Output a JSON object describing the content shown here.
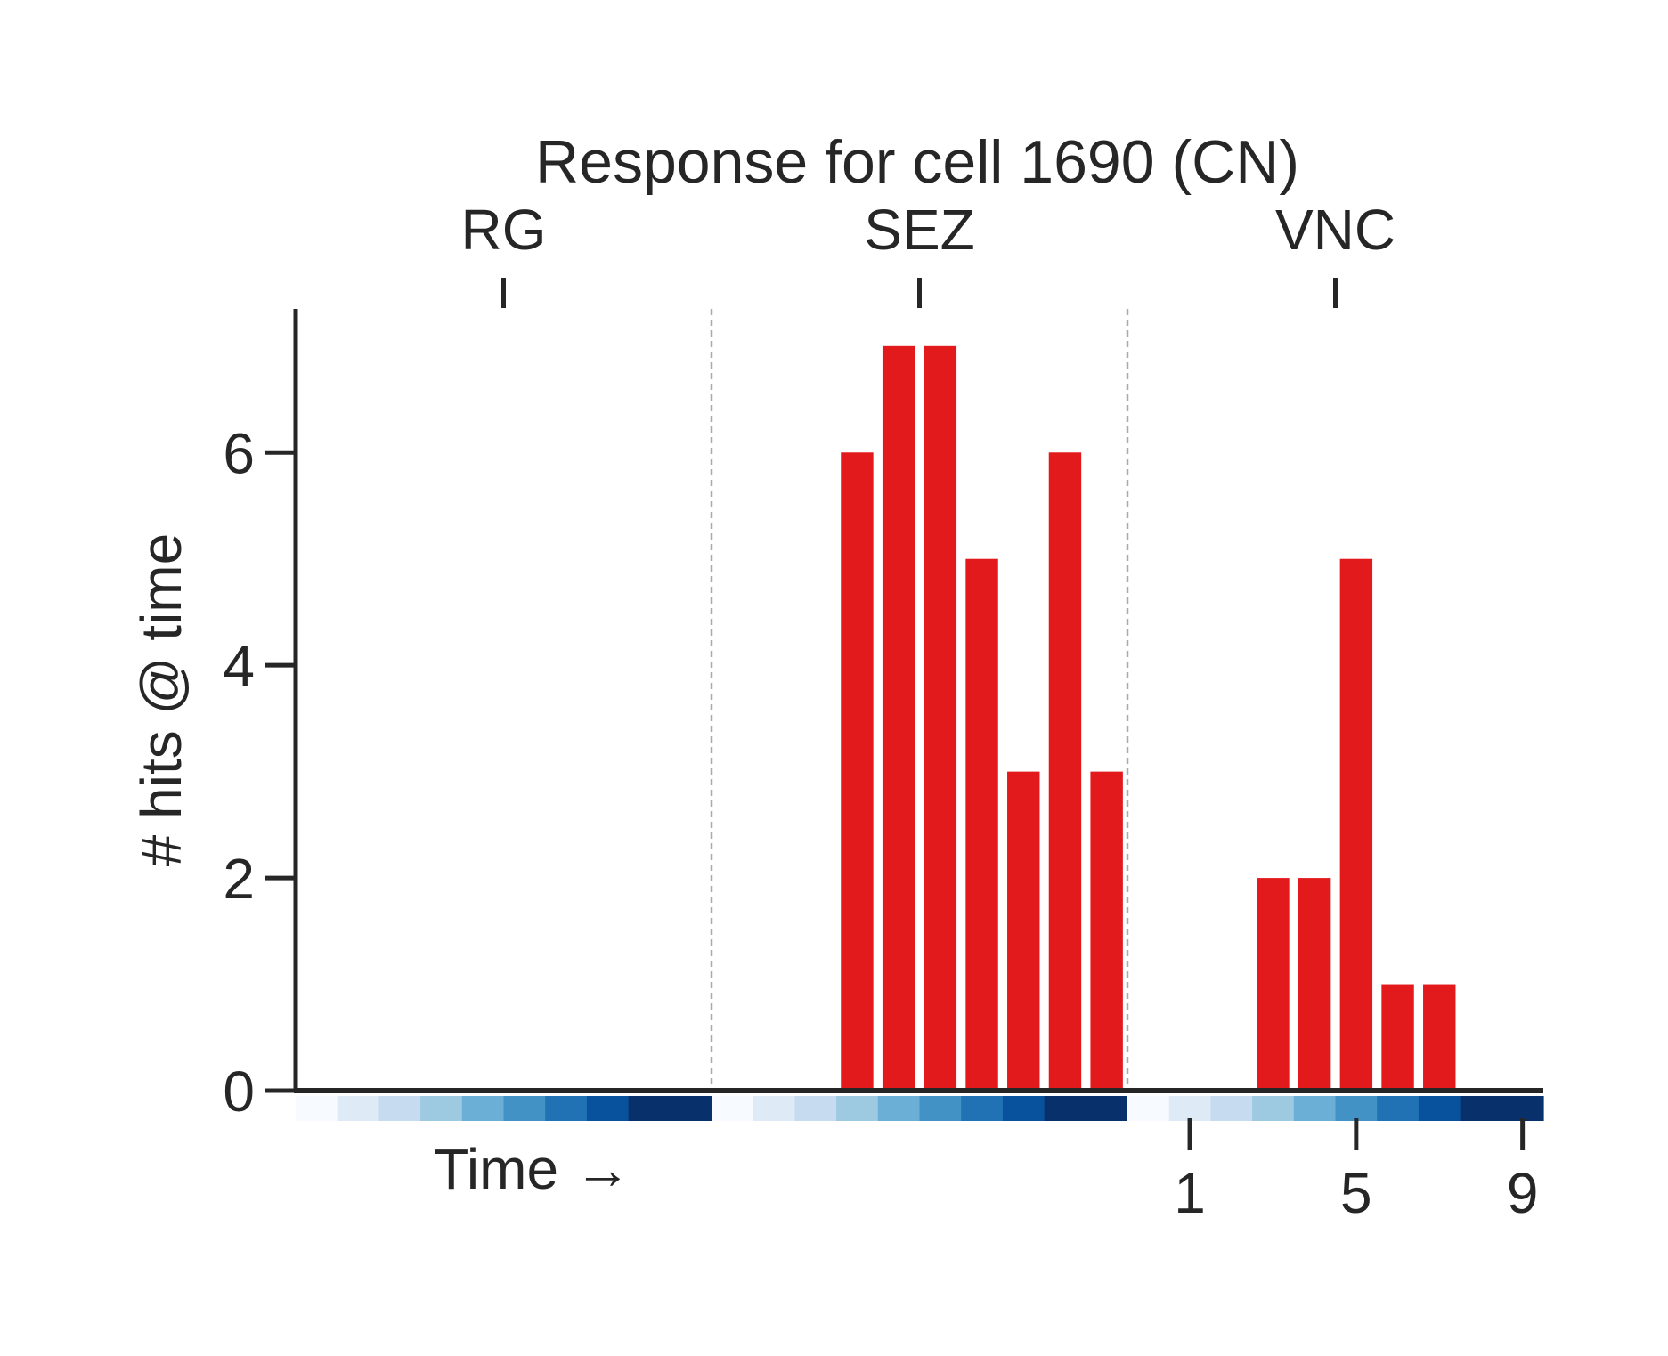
{
  "chart_data": {
    "type": "bar",
    "title": "Response for cell 1690 (CN)",
    "xlabel": "Time →",
    "ylabel": "# hits @ time",
    "ylim": [
      0,
      7.35
    ],
    "yticks": [
      0,
      2,
      4,
      6
    ],
    "grid": false,
    "legend": "none",
    "regions": [
      "RG",
      "SEZ",
      "VNC"
    ],
    "bins_per_region": 10,
    "time_ticks": [
      1,
      5,
      9
    ],
    "bar_color": "#e31a1c",
    "divider_color": "#aaaaaa",
    "time_colormap": [
      "#f7fbff",
      "#deebf7",
      "#c6dbef",
      "#9ecae1",
      "#6baed6",
      "#4292c6",
      "#2171b5",
      "#08519c",
      "#08306b",
      "#08306b"
    ],
    "series": [
      {
        "region": "RG",
        "values": [
          0,
          0,
          0,
          0,
          0,
          0,
          0,
          0,
          0,
          0
        ]
      },
      {
        "region": "SEZ",
        "values": [
          0,
          0,
          0,
          6,
          7,
          7,
          5,
          3,
          6,
          3
        ]
      },
      {
        "region": "VNC",
        "values": [
          0,
          0,
          0,
          2,
          2,
          5,
          1,
          1,
          0,
          0
        ]
      }
    ]
  }
}
